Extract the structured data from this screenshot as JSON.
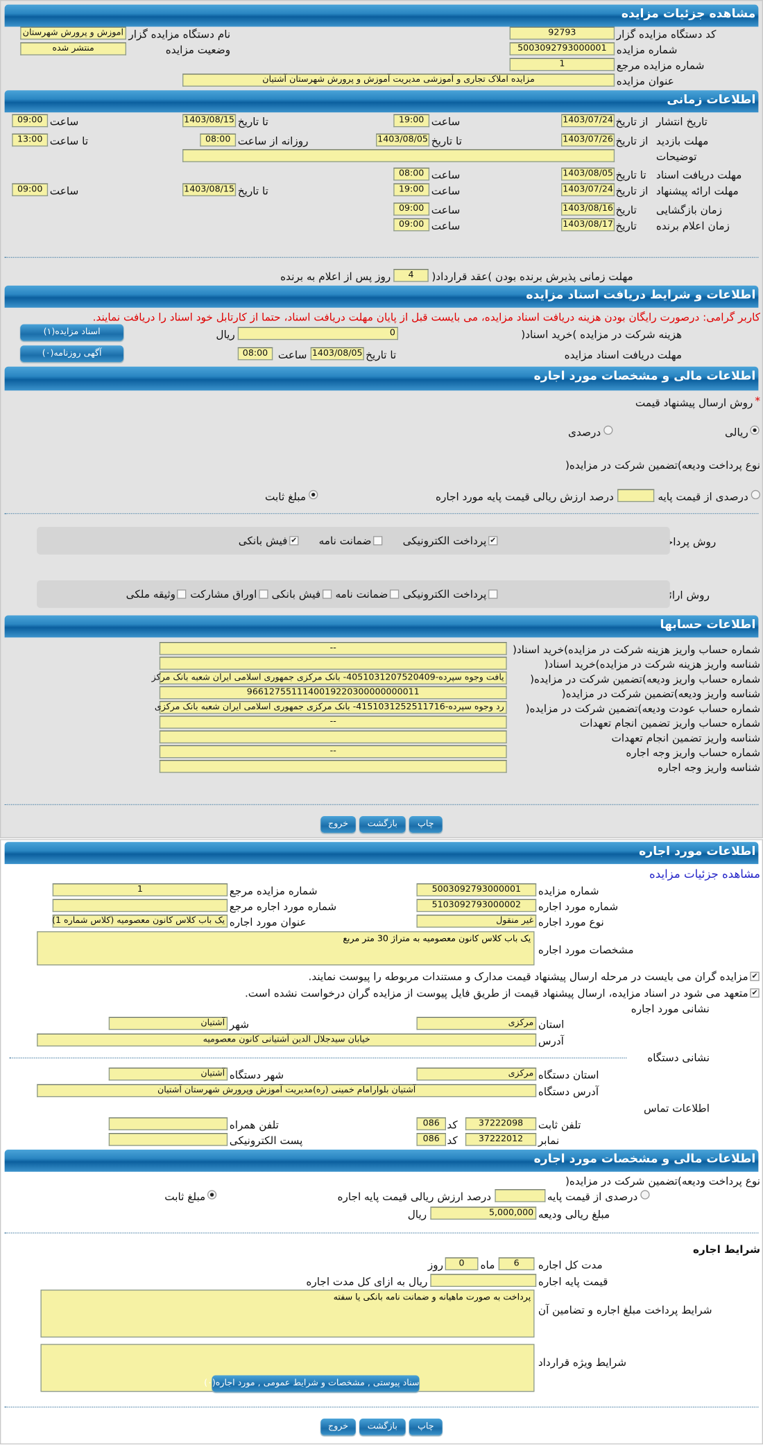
{
  "colors": {
    "header": "#1b6eaa",
    "field": "#f6f2a4",
    "panel": "#e3e3e3",
    "warning": "#e00000",
    "link": "#2626c8"
  },
  "auction": {
    "title": "مشاهده جزئیات مزایده",
    "code_label": "کد دستگاه مزایده گزار",
    "code": "92793",
    "org_label": "نام دستگاه مزایده گزار",
    "org": "اموزش و پرورش شهرستان",
    "number_label": "شماره مزایده",
    "number": "5003092793000001",
    "status_label": "وضعیت مزایده",
    "status": "منتشر شده",
    "ref_label": "شماره مزایده مرجع",
    "ref": "1",
    "subject_label": "عنوان مزایده",
    "subject": "مزایده املاک تجاری و آموزشی مدیریت آموزش و پرورش شهرستان آشتیان"
  },
  "timing": {
    "title": "اطلاعات زمانی",
    "from_date": "از تاریخ",
    "to_date": "تا تاریخ",
    "date": "تاریخ",
    "hour": "ساعت",
    "daily_from": "روزانه از ساعت",
    "to_hour": "تا ساعت",
    "publish": {
      "label": "تاریخ انتشار",
      "from": "1403/07/24",
      "from_time": "19:00",
      "to": "1403/08/15",
      "to_time": "09:00"
    },
    "visit": {
      "label": "مهلت بازدید",
      "from": "1403/07/26",
      "to": "1403/08/05",
      "daily_from": "08:00",
      "daily_to": "13:00"
    },
    "notes_label": "توضیحات",
    "notes": "",
    "doc_deadline": {
      "label": "مهلت دریافت اسناد",
      "to": "1403/08/05",
      "time": "08:00"
    },
    "offer": {
      "label": "مهلت ارائه پیشنهاد",
      "from": "1403/07/24",
      "from_time": "19:00",
      "to": "1403/08/15",
      "to_time": "09:00"
    },
    "opening": {
      "label": "زمان بازگشایی",
      "date": "1403/08/16",
      "time": "09:00"
    },
    "winner": {
      "label": "زمان اعلام برنده",
      "date": "1403/08/17",
      "time": "09:00"
    },
    "accept_label": "مهلت زمانی پذیرش برنده بودن )عقد قرارداد(",
    "accept_days": "4",
    "accept_suffix": "روز پس از اعلام به برنده"
  },
  "documents": {
    "title": "اطلاعات و شرایط دریافت اسناد مزایده",
    "warning": "کاربر گرامی: درصورت رایگان بودن هزینه دریافت اسناد مزایده، می بایست قبل از پایان مهلت دریافت اسناد، حتما از کارتابل خود اسناد را دریافت نمایند.",
    "fee_label": "هزینه شرکت در مزایده )خرید اسناد(",
    "fee": "0",
    "currency": "ریال",
    "deadline_label": "مهلت دریافت اسناد مزایده",
    "deadline_to": "تا تاریخ",
    "deadline_date": "1403/08/05",
    "deadline_hour": "ساعت",
    "deadline_time": "08:00",
    "docs_button": "اسناد مزایده(۱)",
    "ads_button": "آگهی روزنامه(۰)"
  },
  "finance": {
    "title": "اطلاعات مالی و مشخصات مورد اجاره",
    "method_label": "روش ارسال پیشنهاد قیمت",
    "method_required": "*",
    "method_options": [
      {
        "label": "ریالی",
        "selected": true
      },
      {
        "label": "درصدی",
        "selected": false
      }
    ],
    "deposit_type_label": "نوع پرداخت ودیعه)تضمین شرکت در مزایده(",
    "percent_option": "درصدی از قیمت پایه",
    "percent_value": "",
    "percent_suffix": "درصد ارزش ریالی قیمت پایه مورد اجاره",
    "fixed_option": "مبلغ ثابت",
    "fixed_selected": true,
    "deposit_pay_label": "روش پرداخت ودیعه)تضمین شرکت در مزایده(",
    "deposit_pay": [
      {
        "label": "پرداخت الکترونیکی",
        "checked": true
      },
      {
        "label": "ضمانت نامه",
        "checked": false
      },
      {
        "label": "فیش بانکی",
        "checked": true
      }
    ],
    "guarantee_label": "روش ارائه تضمین انجام تعهدات قرارداد",
    "guarantee": [
      {
        "label": "پرداخت الکترونیکی",
        "checked": false
      },
      {
        "label": "ضمانت نامه",
        "checked": false
      },
      {
        "label": "فیش بانکی",
        "checked": false
      },
      {
        "label": "اوراق مشارکت",
        "checked": false
      },
      {
        "label": "وثیقه ملکی",
        "checked": false
      }
    ]
  },
  "accounts": {
    "title": "اطلاعات حسابها",
    "rows": [
      {
        "label": "شماره حساب واریز هزینه شرکت در مزایده)خرید اسناد(",
        "value": "--"
      },
      {
        "label": "شناسه واریز هزینه شرکت در مزایده)خرید اسناد(",
        "value": ""
      },
      {
        "label": "شماره حساب واریز ودیعه)تضمین شرکت در مزایده(",
        "value": "یافت وجوه سپرده-4051031207520409- بانک مرکزی جمهوری اسلامی ایران شعبه بانک مرکز"
      },
      {
        "label": "شناسه واریز ودیعه)تضمین شرکت در مزایده(",
        "value": "9661275511140019220300000000011"
      },
      {
        "label": "شماره حساب عودت ودیعه)تضمین شرکت در مزایده(",
        "value": "رد وجوه سپرده-4151031252511716- بانک مرکزی جمهوری اسلامی ایران شعبه بانک مرکزی"
      },
      {
        "label": "شماره حساب واریز تضمین انجام تعهدات",
        "value": "--"
      },
      {
        "label": "شناسه واریز تضمین انجام تعهدات",
        "value": ""
      },
      {
        "label": "شماره حساب واریز وجه اجاره",
        "value": "--"
      },
      {
        "label": "شناسه واریز وجه اجاره",
        "value": ""
      }
    ]
  },
  "actions": {
    "print": "چاپ",
    "back": "بازگشت",
    "exit": "خروج"
  },
  "lease": {
    "title": "اطلاعات مورد اجاره",
    "link": "مشاهده جزئیات مزایده",
    "number_label": "شماره مزایده",
    "number": "5003092793000001",
    "ref_label": "شماره مزایده مرجع",
    "ref": "1",
    "item_no_label": "شماره مورد اجاره",
    "item_no": "5103092793000002",
    "item_ref_label": "شماره مورد اجاره مرجع",
    "item_ref": "",
    "type_label": "نوع مورد اجاره",
    "type": "غیر منقول",
    "item_title_label": "عنوان مورد اجاره",
    "item_title": "یک باب کلاس کانون معصومیه (کلاس شماره 1)",
    "spec_label": "مشخصات مورد اجاره",
    "spec": "یک باب کلاس کانون معصومیه به متراژ 30 متر مربع",
    "check1": "مزایده گران می بایست در مرحله ارسال پیشنهاد قیمت مدارک و مستندات مربوطه را پیوست نمایند.",
    "check2": "متعهد می شود در اسناد مزایده، ارسال پیشنهاد قیمت از طریق فایل پیوست از مزایده گران درخواست نشده است.",
    "address_title": "نشانی مورد اجاره",
    "province_label": "استان",
    "province": "مرکزی",
    "city_label": "شهر",
    "city": "آشتیان",
    "address_label": "آدرس",
    "address": "خیابان سیدجلال الدین آشتیانی کانون معصومیه",
    "org_address_title": "نشانی دستگاه",
    "org_province_label": "استان دستگاه",
    "org_province": "مرکزی",
    "org_city_label": "شهر دستگاه",
    "org_city": "آشتیان",
    "org_address_label": "آدرس دستگاه",
    "org_address": "آشتیان بلوارامام خمینی (ره)مدیریت آموزش وپرورش شهرستان آشتیان",
    "contact_title": "اطلاعات تماس",
    "phone_label": "تلفن ثابت",
    "phone": "37222098",
    "code_label": "کد",
    "phone_code": "086",
    "mobile_label": "تلفن همراه",
    "mobile": "",
    "fax_label": "نمابر",
    "fax": "37222012",
    "fax_code": "086",
    "email_label": "پست الکترونیکی",
    "email": ""
  },
  "lease_finance": {
    "title": "اطلاعات مالی و مشخصات مورد اجاره",
    "deposit_type_label": "نوع پرداخت ودیعه)تضمین شرکت در مزایده(",
    "percent_option": "درصدی از قیمت پایه",
    "percent_value": "",
    "percent_suffix": "درصد ارزش ریالی قیمت پایه اجاره",
    "fixed_option": "مبلغ ثابت",
    "deposit_label": "مبلغ ریالی ودیعه",
    "deposit": "5,000,000",
    "currency": "ریال",
    "terms_title": "شرایط اجاره",
    "duration_label": "مدت کل اجاره",
    "months": "6",
    "months_unit": "ماه",
    "days": "0",
    "days_unit": "روز",
    "base_label": "قیمت پایه اجاره",
    "base": "",
    "base_suffix": "ریال به ازای کل مدت اجاره",
    "payment_terms_label": "شرایط پرداخت مبلغ اجاره و تضامین آن",
    "payment_terms": "پرداخت به صورت ماهیانه و ضمانت نامه بانکی یا سفته",
    "special_terms_label": "شرایط ویژه قرارداد",
    "special_terms": "",
    "attachments_button": "سناد پیوستی , مشخصات و شرایط عمومی , مورد اجاره(۰)"
  }
}
